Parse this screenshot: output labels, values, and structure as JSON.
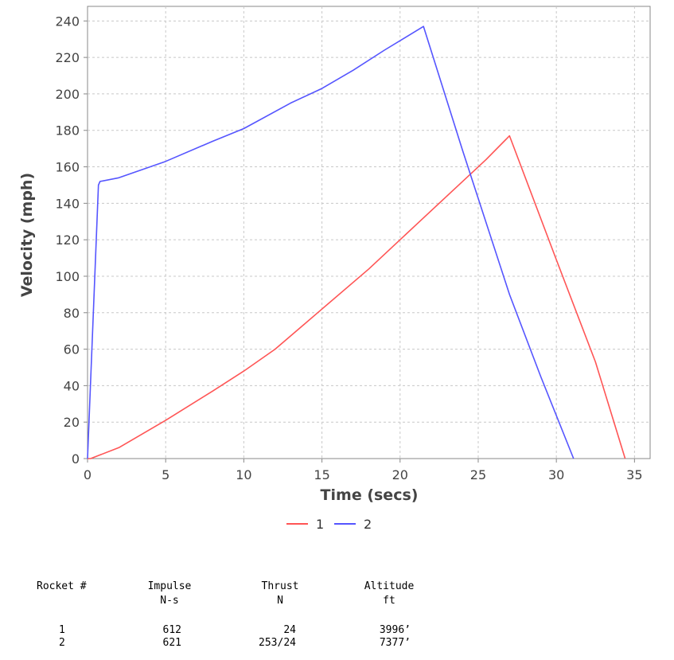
{
  "chart_data": {
    "type": "line",
    "xlabel": "Time (secs)",
    "ylabel": "Velocity (mph)",
    "xlim": [
      0,
      36
    ],
    "ylim": [
      0,
      248
    ],
    "x_ticks": [
      0,
      5,
      10,
      15,
      20,
      25,
      30,
      35
    ],
    "y_ticks": [
      0,
      20,
      40,
      60,
      80,
      100,
      120,
      140,
      160,
      180,
      200,
      220,
      240
    ],
    "grid": true,
    "legend_position": "bottom-center",
    "series": [
      {
        "name": "1",
        "color": "#ff5555",
        "points": [
          [
            0,
            0
          ],
          [
            0.2,
            0
          ],
          [
            2,
            6
          ],
          [
            5,
            21
          ],
          [
            8,
            37
          ],
          [
            10,
            48
          ],
          [
            12,
            60
          ],
          [
            15,
            82
          ],
          [
            18,
            104
          ],
          [
            21,
            128
          ],
          [
            24,
            152
          ],
          [
            25.5,
            164
          ],
          [
            27,
            177
          ],
          [
            30,
            109
          ],
          [
            32.5,
            53
          ],
          [
            34.4,
            0
          ]
        ]
      },
      {
        "name": "2",
        "color": "#5555ff",
        "points": [
          [
            0,
            0
          ],
          [
            0.7,
            150
          ],
          [
            0.8,
            152
          ],
          [
            2,
            154
          ],
          [
            5,
            163
          ],
          [
            8,
            174
          ],
          [
            10,
            181
          ],
          [
            13,
            195
          ],
          [
            15,
            203
          ],
          [
            17,
            213
          ],
          [
            19,
            224
          ],
          [
            21.5,
            237
          ],
          [
            24,
            169
          ],
          [
            27,
            90
          ],
          [
            29,
            45
          ],
          [
            31.1,
            0
          ]
        ]
      }
    ]
  },
  "table": {
    "headers": [
      {
        "line1": "Rocket #",
        "line2": ""
      },
      {
        "line1": "Impulse",
        "line2": "N-s"
      },
      {
        "line1": "Thrust",
        "line2": "N"
      },
      {
        "line1": "Altitude",
        "line2": "ft"
      }
    ],
    "rows": [
      {
        "rocket": "1",
        "impulse": "612",
        "thrust": "24",
        "altitude": "3996’"
      },
      {
        "rocket": "2",
        "impulse": "621",
        "thrust": "253/24",
        "altitude": "7377’"
      }
    ]
  }
}
